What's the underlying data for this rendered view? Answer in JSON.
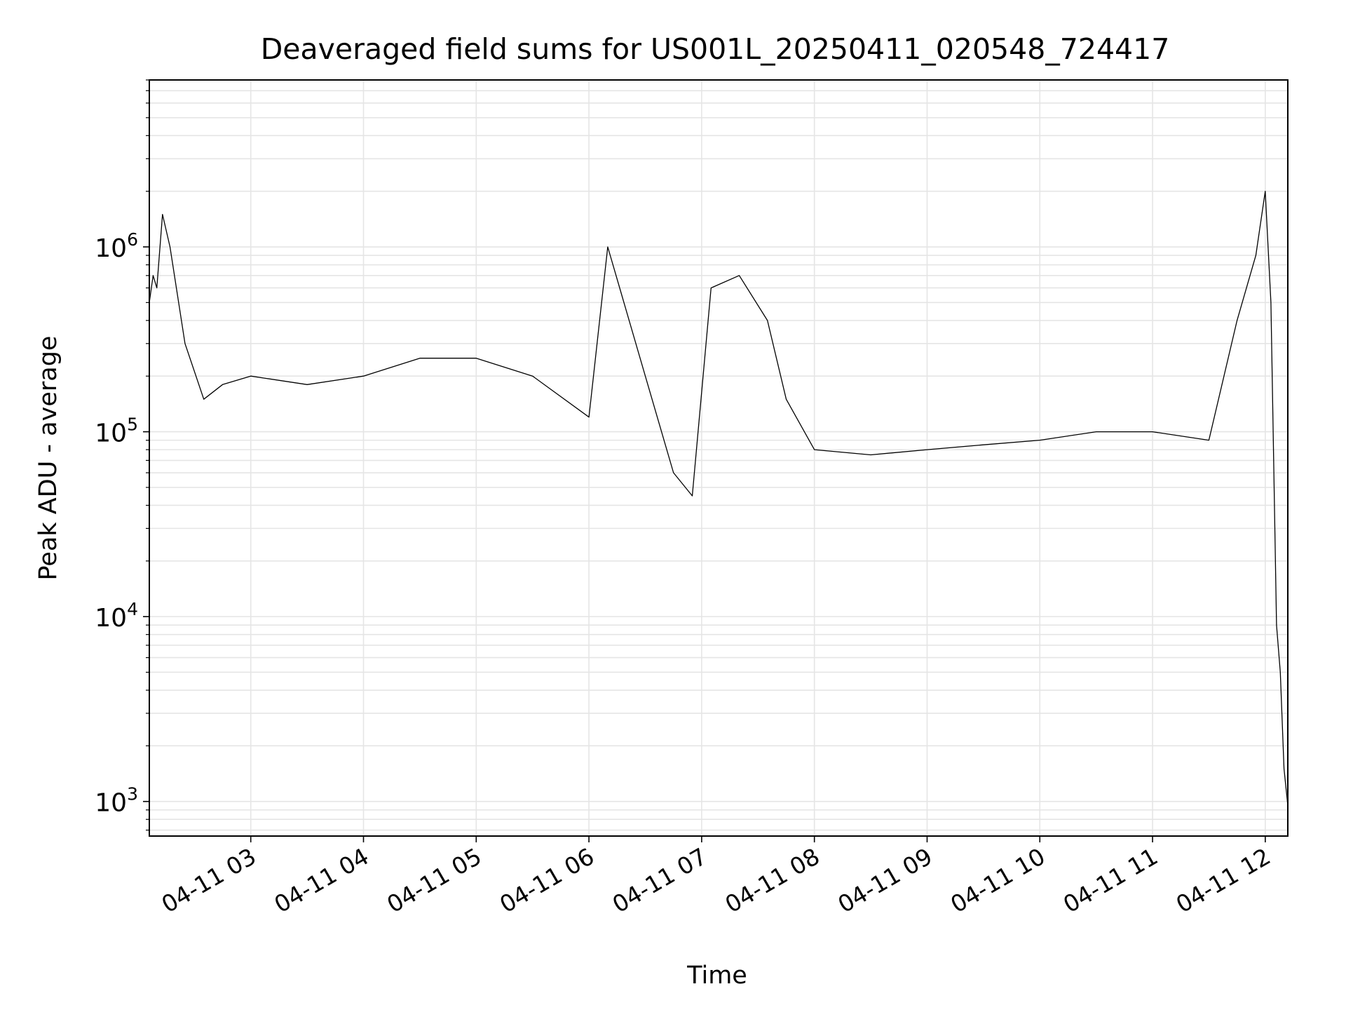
{
  "chart_data": {
    "type": "line",
    "title": "Deaveraged field sums for US001L_20250411_020548_724417",
    "xlabel": "Time",
    "ylabel": "Peak ADU - average",
    "y_scale": "log",
    "ylim": [
      650,
      8000000
    ],
    "xlim": [
      "2025-04-11T02:06",
      "2025-04-11T12:12"
    ],
    "x_ticks": [
      "04-11 03",
      "04-11 04",
      "04-11 05",
      "04-11 06",
      "04-11 07",
      "04-11 08",
      "04-11 09",
      "04-11 10",
      "04-11 11",
      "04-11 12"
    ],
    "y_ticks": [
      {
        "base": "10",
        "exp": "3"
      },
      {
        "base": "10",
        "exp": "4"
      },
      {
        "base": "10",
        "exp": "5"
      },
      {
        "base": "10",
        "exp": "6"
      }
    ],
    "grid": true,
    "line_color": "#000000",
    "series": [
      {
        "points": [
          [
            "2025-04-11T02:06",
            500000
          ],
          [
            "2025-04-11T02:08",
            700000
          ],
          [
            "2025-04-11T02:10",
            600000
          ],
          [
            "2025-04-11T02:13",
            1500000
          ],
          [
            "2025-04-11T02:17",
            1000000
          ],
          [
            "2025-04-11T02:25",
            300000
          ],
          [
            "2025-04-11T02:35",
            150000
          ],
          [
            "2025-04-11T02:45",
            180000
          ],
          [
            "2025-04-11T03:00",
            200000
          ],
          [
            "2025-04-11T03:30",
            180000
          ],
          [
            "2025-04-11T04:00",
            200000
          ],
          [
            "2025-04-11T04:30",
            250000
          ],
          [
            "2025-04-11T05:00",
            250000
          ],
          [
            "2025-04-11T05:30",
            200000
          ],
          [
            "2025-04-11T06:00",
            120000
          ],
          [
            "2025-04-11T06:10",
            1000000
          ],
          [
            "2025-04-11T06:30",
            200000
          ],
          [
            "2025-04-11T06:45",
            60000
          ],
          [
            "2025-04-11T06:55",
            45000
          ],
          [
            "2025-04-11T07:05",
            600000
          ],
          [
            "2025-04-11T07:20",
            700000
          ],
          [
            "2025-04-11T07:35",
            400000
          ],
          [
            "2025-04-11T07:45",
            150000
          ],
          [
            "2025-04-11T08:00",
            80000
          ],
          [
            "2025-04-11T08:30",
            75000
          ],
          [
            "2025-04-11T09:00",
            80000
          ],
          [
            "2025-04-11T09:30",
            85000
          ],
          [
            "2025-04-11T10:00",
            90000
          ],
          [
            "2025-04-11T10:30",
            100000
          ],
          [
            "2025-04-11T11:00",
            100000
          ],
          [
            "2025-04-11T11:30",
            90000
          ],
          [
            "2025-04-11T11:45",
            400000
          ],
          [
            "2025-04-11T11:55",
            900000
          ],
          [
            "2025-04-11T12:00",
            2000000
          ],
          [
            "2025-04-11T12:03",
            500000
          ],
          [
            "2025-04-11T12:06",
            9000
          ],
          [
            "2025-04-11T12:08",
            5000
          ],
          [
            "2025-04-11T12:10",
            1500
          ],
          [
            "2025-04-11T12:12",
            950
          ]
        ]
      }
    ]
  }
}
